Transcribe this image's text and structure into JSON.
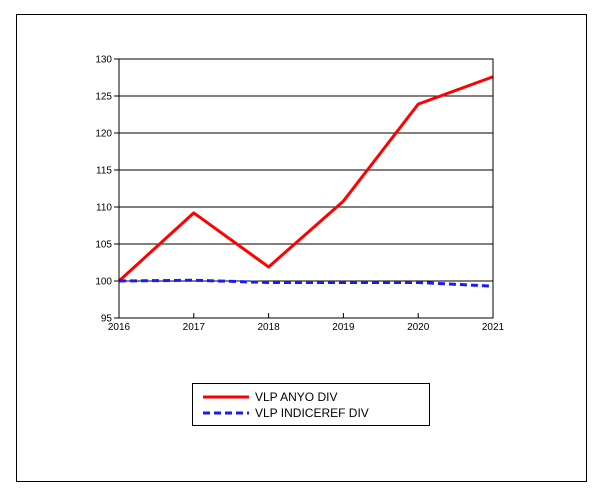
{
  "chart_data": {
    "type": "line",
    "x": [
      2016,
      2017,
      2018,
      2019,
      2020,
      2021
    ],
    "xticks": [
      "2016",
      "2017",
      "2018",
      "2019",
      "2020",
      "2021"
    ],
    "yticks": [
      "95",
      "100",
      "105",
      "110",
      "115",
      "120",
      "125",
      "130"
    ],
    "ylim": [
      95,
      130
    ],
    "grid": "horizontal",
    "legend_position": "bottom",
    "series": [
      {
        "name": "VLP ANYO DIV",
        "color": "#ff0000",
        "style": "solid",
        "values": [
          100.0,
          109.2,
          101.9,
          110.8,
          123.9,
          127.6
        ]
      },
      {
        "name": "VLP INDICEREF DIV",
        "color": "#1a1aff",
        "style": "dashed",
        "values": [
          100.0,
          100.1,
          99.8,
          99.8,
          99.8,
          99.3
        ]
      }
    ]
  }
}
